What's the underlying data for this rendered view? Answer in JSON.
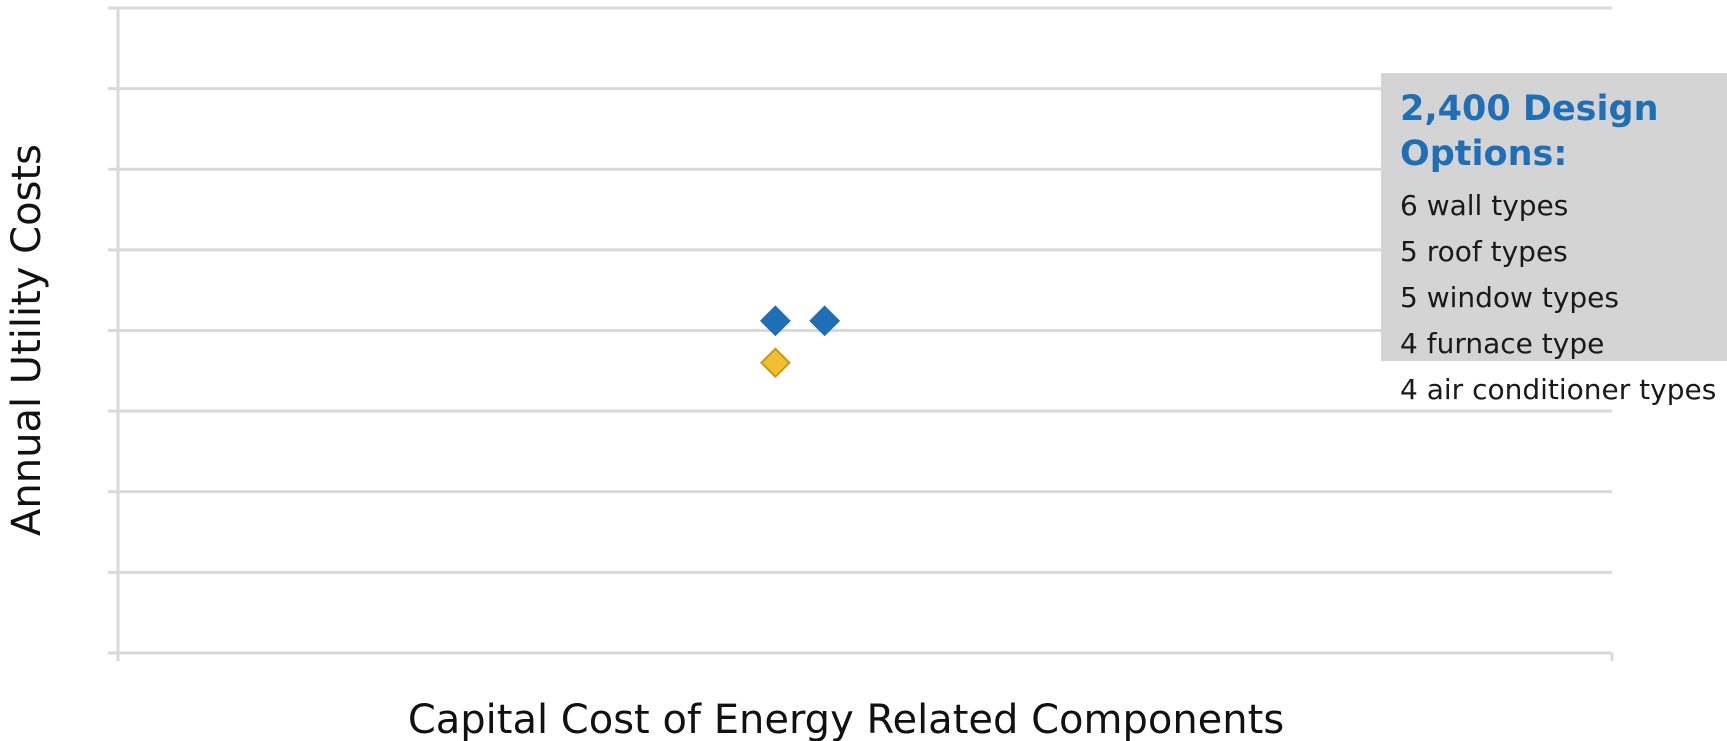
{
  "chart_data": {
    "type": "scatter",
    "title": "",
    "xlabel": "Capital Cost of Energy Related Components",
    "ylabel": "Annual Utility Costs",
    "xlim": [
      0,
      10
    ],
    "ylim": [
      0,
      8
    ],
    "grid": true,
    "tick_labels_shown": false,
    "series": [
      {
        "marker": "diamond",
        "color": "#1f6fb7",
        "points": [
          {
            "x": 4.4,
            "y": 4.12
          },
          {
            "x": 4.73,
            "y": 4.12
          }
        ]
      },
      {
        "marker": "diamond",
        "color": "#f0c030",
        "edge_color": "#c89a10",
        "points": [
          {
            "x": 4.4,
            "y": 3.6
          }
        ]
      }
    ],
    "annotation": {
      "title": "2,400 Design Options:",
      "items": [
        "6 wall types",
        "5 roof types",
        "5 window types",
        "4 furnace type",
        "4 air conditioner types"
      ],
      "background": "#d4d4d4",
      "title_color": "#1f6fb7"
    }
  }
}
